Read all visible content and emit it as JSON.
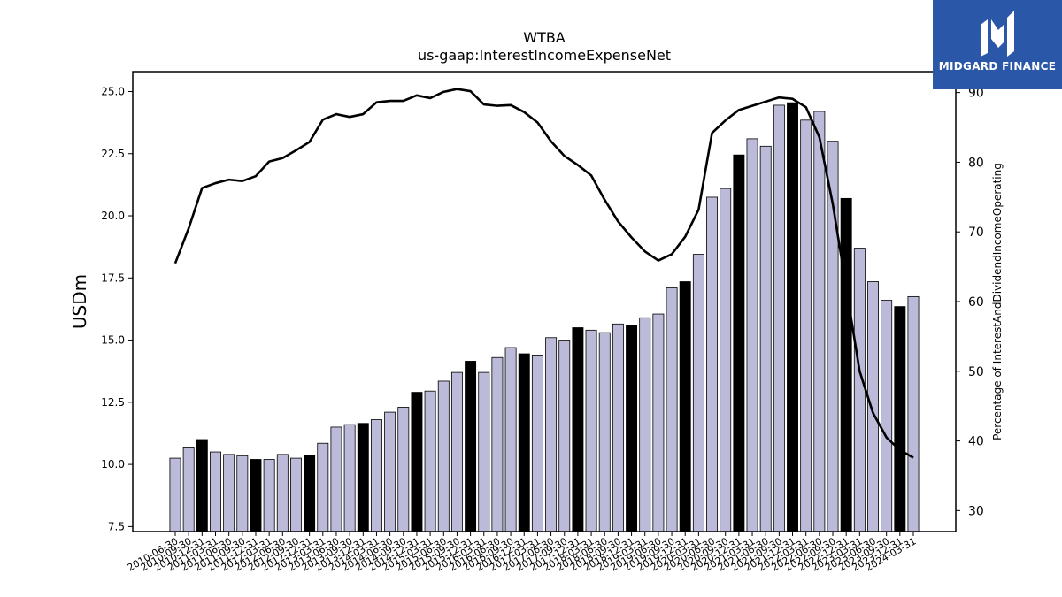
{
  "logo": {
    "text": "MIDGARD FINANCE",
    "background": "#2b57a8",
    "icon": "midgard-m-icon"
  },
  "chart_data": {
    "type": "bar+line",
    "title": "WTBA",
    "subtitle": "us-gaap:InterestIncomeExpenseNet",
    "ylabel": "USDm",
    "y2label": "Percentage of InterestAndDividendIncomeOperating",
    "ylim": [
      7.3,
      25.8
    ],
    "y2lim": [
      27,
      93
    ],
    "yticks": [
      "7.5",
      "10.0",
      "12.5",
      "15.0",
      "17.5",
      "20.0",
      "22.5",
      "25.0"
    ],
    "y2ticks": [
      "30",
      "40",
      "50",
      "60",
      "70",
      "80",
      "90"
    ],
    "colors": {
      "bar": "#bcbad9",
      "bar_q4": "#000000",
      "line": "#000000"
    },
    "categories": [
      "2010-06-30",
      "2010-09-30",
      "2010-12-31",
      "2011-03-31",
      "2011-06-30",
      "2011-09-30",
      "2011-12-31",
      "2012-03-31",
      "2012-06-30",
      "2012-09-30",
      "2012-12-31",
      "2013-03-31",
      "2013-06-30",
      "2013-09-30",
      "2013-12-31",
      "2014-03-31",
      "2014-06-30",
      "2014-09-30",
      "2014-12-31",
      "2015-03-31",
      "2015-06-30",
      "2015-09-30",
      "2015-12-31",
      "2016-03-31",
      "2016-06-30",
      "2016-09-30",
      "2016-12-31",
      "2017-03-31",
      "2017-06-30",
      "2017-09-30",
      "2017-12-31",
      "2018-03-31",
      "2018-06-30",
      "2018-09-30",
      "2018-12-31",
      "2019-03-31",
      "2019-06-30",
      "2019-09-30",
      "2019-12-31",
      "2020-03-31",
      "2020-06-30",
      "2020-09-30",
      "2020-12-31",
      "2021-03-31",
      "2021-06-30",
      "2021-09-30",
      "2021-12-31",
      "2022-03-31",
      "2022-06-30",
      "2022-09-30",
      "2022-12-31",
      "2023-03-31",
      "2023-06-30",
      "2023-09-30",
      "2023-12-31",
      "2024-03-31"
    ],
    "series": [
      {
        "kind": "bar",
        "axis": "left",
        "values": [
          10.25,
          10.7,
          11.0,
          10.5,
          10.4,
          10.35,
          10.2,
          10.2,
          10.4,
          10.25,
          10.35,
          10.85,
          11.5,
          11.6,
          11.65,
          11.8,
          12.1,
          12.3,
          12.9,
          12.95,
          13.35,
          13.7,
          14.15,
          13.7,
          14.3,
          14.7,
          14.45,
          14.4,
          15.1,
          15.0,
          15.5,
          15.4,
          15.3,
          15.65,
          15.6,
          15.9,
          16.05,
          17.1,
          17.35,
          18.45,
          20.75,
          21.1,
          22.45,
          23.1,
          22.8,
          24.45,
          24.55,
          23.85,
          24.2,
          23.0,
          20.7,
          18.7,
          17.35,
          16.6,
          16.35,
          16.75
        ]
      },
      {
        "kind": "line",
        "axis": "right",
        "values": [
          65.5,
          70.5,
          76.3,
          77.0,
          77.5,
          77.3,
          78.0,
          80.1,
          80.6,
          81.7,
          82.9,
          86.1,
          86.9,
          86.5,
          86.9,
          88.6,
          88.8,
          88.8,
          89.6,
          89.2,
          90.1,
          90.5,
          90.2,
          88.3,
          88.1,
          88.2,
          87.2,
          85.7,
          83.0,
          80.9,
          79.6,
          78.1,
          74.6,
          71.5,
          69.2,
          67.2,
          65.9,
          66.8,
          69.3,
          73.2,
          84.2,
          86.0,
          87.5,
          88.1,
          88.7,
          89.3,
          89.1,
          87.9,
          83.6,
          74.0,
          62.0,
          50.0,
          44.0,
          40.5,
          38.7,
          37.6
        ]
      }
    ]
  }
}
